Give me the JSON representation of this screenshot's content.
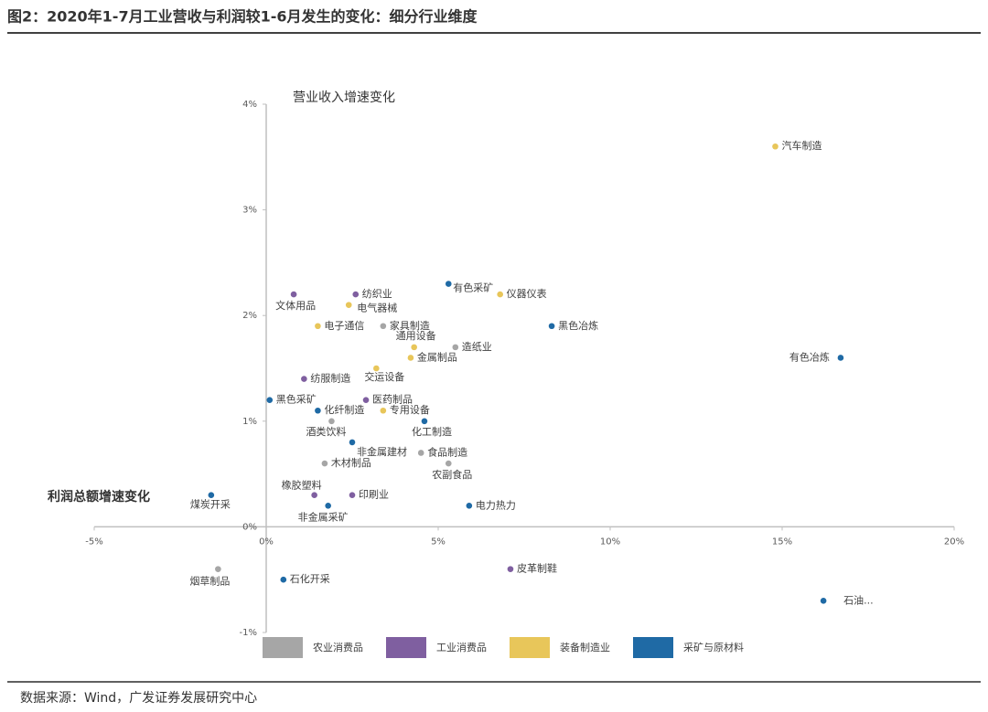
{
  "chart_data": {
    "type": "scatter",
    "title": "图2：2020年1-7月工业营收与利润较1-6月发生的变化：细分行业维度",
    "y_label": "营业收入增速变化",
    "x_label": "利润总额增速变化",
    "source": "数据来源：Wind，广发证券发展研究中心",
    "xlim": [
      -5,
      20
    ],
    "ylim": [
      -1,
      4
    ],
    "xticks": [
      {
        "value": -5,
        "label": "-5%"
      },
      {
        "value": 0,
        "label": "0%"
      },
      {
        "value": 5,
        "label": "5%"
      },
      {
        "value": 10,
        "label": "10%"
      },
      {
        "value": 15,
        "label": "15%"
      },
      {
        "value": 20,
        "label": "20%"
      }
    ],
    "yticks": [
      {
        "value": -1,
        "label": "-1%"
      },
      {
        "value": 0,
        "label": "0%"
      },
      {
        "value": 1,
        "label": "1%"
      },
      {
        "value": 2,
        "label": "2%"
      },
      {
        "value": 3,
        "label": "3%"
      },
      {
        "value": 4,
        "label": "4%"
      }
    ],
    "series": [
      {
        "name": "农业消费品",
        "color": "#a6a6a6",
        "labels": [
          "家具制造",
          "造纸业",
          "酒类饮料",
          "食品制造",
          "木材制品",
          "农副食品",
          "烟草制品"
        ],
        "x": [
          3.4,
          5.5,
          1.9,
          4.5,
          1.7,
          5.3,
          -1.4
        ],
        "values": [
          1.9,
          1.7,
          1.0,
          0.7,
          0.6,
          0.6,
          -0.4
        ]
      },
      {
        "name": "工业消费品",
        "color": "#7f5fa0",
        "labels": [
          "文体用品",
          "纺织业",
          "纺服制造",
          "医药制品",
          "橡胶塑料",
          "印刷业",
          "皮革制鞋"
        ],
        "x": [
          0.8,
          2.6,
          1.1,
          2.9,
          1.4,
          2.5,
          7.1
        ],
        "values": [
          2.2,
          2.2,
          1.4,
          1.2,
          0.3,
          0.3,
          -0.4
        ]
      },
      {
        "name": "装备制造业",
        "color": "#e8c65a",
        "labels": [
          "汽车制造",
          "仪器仪表",
          "电气器械",
          "电子通信",
          "通用设备",
          "金属制品",
          "交运设备",
          "专用设备"
        ],
        "x": [
          14.8,
          6.8,
          2.4,
          1.5,
          4.3,
          4.2,
          3.2,
          3.4
        ],
        "values": [
          3.6,
          2.2,
          2.1,
          1.9,
          1.7,
          1.6,
          1.5,
          1.1
        ]
      },
      {
        "name": "采矿与原材料",
        "color": "#1f6aa5",
        "labels": [
          "有色采矿",
          "黑色冶炼",
          "有色冶炼",
          "黑色采矿",
          "化纤制造",
          "化工制造",
          "非金属建材",
          "煤炭开采",
          "电力热力",
          "非金属采矿",
          "石化开采",
          "石油..."
        ],
        "x": [
          5.3,
          8.3,
          16.7,
          0.1,
          1.5,
          4.6,
          2.5,
          -1.6,
          5.9,
          1.8,
          0.5,
          16.2
        ],
        "values": [
          2.3,
          1.9,
          1.6,
          1.2,
          1.1,
          1.0,
          0.8,
          0.3,
          0.2,
          0.2,
          -0.5,
          -0.7
        ]
      }
    ]
  }
}
